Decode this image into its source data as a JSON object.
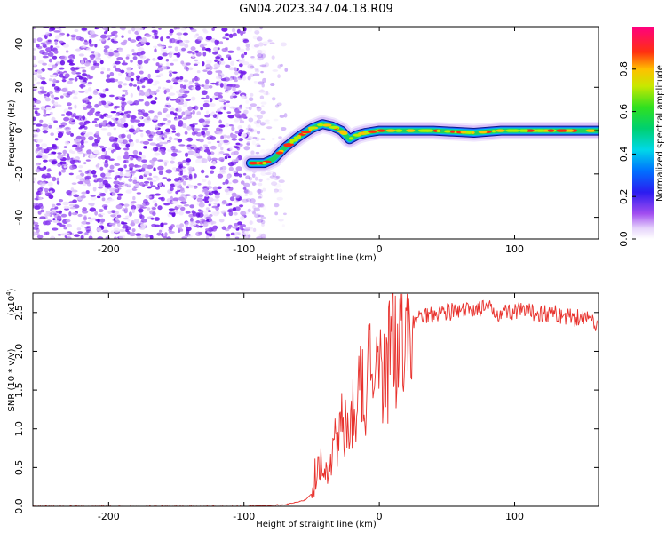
{
  "title": "GN04.2023.347.04.18.R09",
  "chart_data": [
    {
      "type": "heatmap",
      "ylabel": "Frequency (Hz)",
      "xlabel": "Height of straight line (km)",
      "xlim": [
        -256,
        162
      ],
      "ylim": [
        -50,
        48
      ],
      "xticks": [
        -200,
        -100,
        0,
        100
      ],
      "yticks": [
        -40,
        -20,
        0,
        20,
        40
      ],
      "colorbar": {
        "label": "Normalized spectral amplitude",
        "ticks": [
          "0.0",
          "0.2",
          "0.4",
          "0.6",
          "0.8"
        ],
        "range": [
          0,
          1
        ]
      },
      "ridge_track": {
        "x": [
          -95,
          -85,
          -78,
          -70,
          -60,
          -50,
          -42,
          -35,
          -28,
          -22,
          -16,
          -10,
          0,
          15,
          40,
          70,
          90,
          120,
          162
        ],
        "y": [
          -15,
          -15,
          -13,
          -8,
          -3,
          1,
          3,
          2,
          0,
          -4,
          -2,
          -1,
          0,
          0,
          0,
          -1,
          0,
          0,
          0
        ]
      }
    },
    {
      "type": "line",
      "ylabel": "SNR (10 * v/v)",
      "xlabel": "Height of straight line (km)",
      "exponent_label": "(x10",
      "exponent": "4",
      "exponent_close": ")",
      "xlim": [
        -256,
        162
      ],
      "ylim": [
        0,
        2.75
      ],
      "xticks": [
        -200,
        -100,
        0,
        100
      ],
      "yticks": [
        "0.0",
        "0.5",
        "1.0",
        "1.5",
        "2.0",
        "2.5"
      ],
      "series": [
        {
          "color": "#e8312c",
          "x": [
            -256,
            -200,
            -150,
            -100,
            -70,
            -55,
            -48,
            -45,
            -40,
            -35,
            -30,
            -25,
            -20,
            -15,
            -10,
            -5,
            0,
            5,
            10,
            15,
            20,
            25,
            30,
            40,
            50,
            60,
            70,
            80,
            90,
            100,
            110,
            120,
            130,
            140,
            150,
            162
          ],
          "y": [
            0.0,
            0.0,
            0.0,
            0.0,
            0.02,
            0.08,
            0.2,
            0.3,
            0.4,
            0.7,
            0.95,
            1.15,
            1.3,
            1.45,
            1.6,
            1.7,
            1.8,
            1.9,
            2.05,
            2.15,
            2.3,
            2.38,
            2.45,
            2.5,
            2.52,
            2.5,
            2.55,
            2.55,
            2.5,
            2.52,
            2.5,
            2.5,
            2.48,
            2.45,
            2.45,
            2.35
          ]
        }
      ]
    }
  ]
}
